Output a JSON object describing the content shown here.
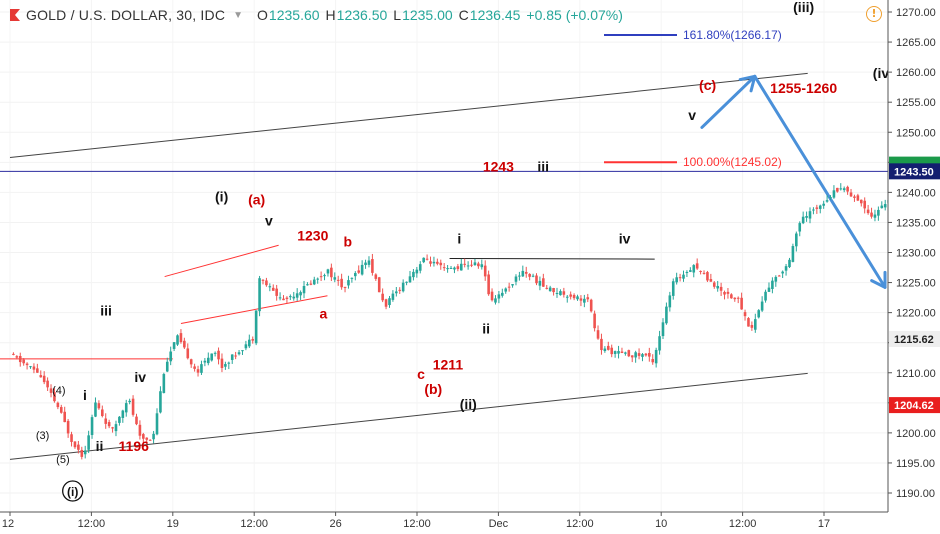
{
  "header": {
    "symbol": "GOLD / U.S. DOLLAR, 30, IDC",
    "open_label": "O",
    "open": "1235.60",
    "high_label": "H",
    "high": "1236.50",
    "low_label": "L",
    "low": "1235.00",
    "close_label": "C",
    "close": "1236.45",
    "change": "+0.85 (+0.07%)",
    "alert_icon": "exclamation-icon"
  },
  "colors": {
    "up": "#26a69a",
    "down": "#ef5350",
    "red_label": "#cc0000",
    "arrow": "#4a90d9",
    "hline": "#2b2b9f",
    "fib161": "#2f3fbf",
    "fib100": "#ff3333",
    "price_red": "#e91e1e",
    "price_green": "#1b9a4a",
    "price_navy": "#131e70"
  },
  "chart_data": {
    "type": "candlestick",
    "title": "GOLD / U.S. DOLLAR, 30, IDC",
    "ylim": [
      1187,
      1272
    ],
    "y_ticks": [
      "1190.00",
      "1195.00",
      "1200.00",
      "1205.00",
      "1210.00",
      "1215.00",
      "1220.00",
      "1225.00",
      "1230.00",
      "1235.00",
      "1240.00",
      "1245.00",
      "1250.00",
      "1255.00",
      "1260.00",
      "1265.00",
      "1270.00"
    ],
    "x_ticks": [
      "12",
      "12:00",
      "19",
      "12:00",
      "26",
      "12:00",
      "Dec",
      "12:00",
      "10",
      "12:00",
      "17"
    ],
    "price_path": [
      [
        0,
        1213
      ],
      [
        0.35,
        1210
      ],
      [
        0.6,
        1204
      ],
      [
        0.75,
        1199
      ],
      [
        0.9,
        1196
      ],
      [
        1.05,
        1205
      ],
      [
        1.25,
        1200
      ],
      [
        1.45,
        1206
      ],
      [
        1.6,
        1199
      ],
      [
        1.75,
        1199
      ],
      [
        1.9,
        1211
      ],
      [
        2.05,
        1216
      ],
      [
        2.3,
        1210
      ],
      [
        2.5,
        1214
      ],
      [
        2.6,
        1211
      ],
      [
        3.0,
        1216
      ],
      [
        3.05,
        1226
      ],
      [
        3.35,
        1222
      ],
      [
        3.6,
        1224
      ],
      [
        3.9,
        1227
      ],
      [
        4.1,
        1224
      ],
      [
        4.4,
        1229
      ],
      [
        4.6,
        1221
      ],
      [
        4.9,
        1226
      ],
      [
        5.1,
        1229
      ],
      [
        5.35,
        1227
      ],
      [
        5.6,
        1228
      ],
      [
        5.8,
        1228
      ],
      [
        5.9,
        1222
      ],
      [
        6.1,
        1224
      ],
      [
        6.3,
        1227
      ],
      [
        6.6,
        1224
      ],
      [
        7.1,
        1222
      ],
      [
        7.25,
        1214
      ],
      [
        7.55,
        1213
      ],
      [
        7.8,
        1213
      ],
      [
        7.9,
        1212
      ],
      [
        8.05,
        1220
      ],
      [
        8.15,
        1225
      ],
      [
        8.4,
        1228
      ],
      [
        8.7,
        1224
      ],
      [
        8.95,
        1222
      ],
      [
        9.1,
        1217
      ],
      [
        9.3,
        1224
      ],
      [
        9.55,
        1228
      ],
      [
        9.7,
        1235
      ],
      [
        9.95,
        1238
      ],
      [
        10.2,
        1241
      ],
      [
        10.4,
        1239
      ],
      [
        10.6,
        1236
      ],
      [
        10.8,
        1239
      ],
      [
        11.05,
        1234
      ],
      [
        11.35,
        1240
      ],
      [
        11.5,
        1235
      ]
    ],
    "series": [
      {
        "name": "Projected path",
        "points": [
          [
            11.5,
            1235
          ],
          [
            11.65,
            1233
          ],
          [
            12.2,
            1249
          ]
        ]
      }
    ],
    "horizontal_lines": [
      {
        "label": "",
        "y": 1243.5
      },
      {
        "label": "",
        "y": 1212.3
      }
    ],
    "fib_levels": [
      {
        "label": "161.80%(1266.17)",
        "y": 1266.17
      },
      {
        "label": "100.00%(1245.02)",
        "y": 1245.02
      }
    ],
    "price_labels": [
      {
        "text": "1243.50",
        "y": 1243.5
      },
      {
        "text": "1215.62",
        "y": 1215.62
      },
      {
        "text": "1204.62",
        "y": 1204.62
      }
    ],
    "channel": {
      "upper": [
        [
          0,
          1245.8
        ],
        [
          9.8,
          1259.8
        ]
      ],
      "lower": [
        [
          0,
          1195.6
        ],
        [
          9.8,
          1209.9
        ]
      ]
    },
    "wedge": {
      "upper": [
        [
          1.9,
          1226.0
        ],
        [
          3.3,
          1231.2
        ]
      ],
      "lower": [
        [
          2.1,
          1218.2
        ],
        [
          3.9,
          1222.8
        ]
      ]
    },
    "wave_labels": [
      {
        "text": "(iii)",
        "x": 9.75,
        "y": 1270,
        "style": "black"
      },
      {
        "text": "(iv",
        "x": 10.7,
        "y": 1259,
        "style": "black"
      },
      {
        "text": "(c)",
        "x": 8.57,
        "y": 1257,
        "style": "red"
      },
      {
        "text": "1255-1260",
        "x": 9.75,
        "y": 1256.5,
        "style": "red"
      },
      {
        "text": "v",
        "x": 8.38,
        "y": 1252,
        "style": "black"
      },
      {
        "text": "1243",
        "x": 6.0,
        "y": 1243.5,
        "style": "red"
      },
      {
        "text": "iii",
        "x": 6.55,
        "y": 1243.5,
        "style": "black"
      },
      {
        "text": "(i)",
        "x": 2.6,
        "y": 1238.5,
        "style": "black"
      },
      {
        "text": "(a)",
        "x": 3.03,
        "y": 1238,
        "style": "red"
      },
      {
        "text": "v",
        "x": 3.18,
        "y": 1234.5,
        "style": "black"
      },
      {
        "text": "1230",
        "x": 3.72,
        "y": 1232,
        "style": "red"
      },
      {
        "text": "b",
        "x": 4.15,
        "y": 1231,
        "style": "red"
      },
      {
        "text": "i",
        "x": 5.52,
        "y": 1231.5,
        "style": "black"
      },
      {
        "text": "iv",
        "x": 7.55,
        "y": 1231.5,
        "style": "black"
      },
      {
        "text": "a",
        "x": 3.85,
        "y": 1219,
        "style": "red"
      },
      {
        "text": "iii",
        "x": 1.18,
        "y": 1219.5,
        "style": "black"
      },
      {
        "text": "ii",
        "x": 5.85,
        "y": 1216.5,
        "style": "black"
      },
      {
        "text": "1211",
        "x": 5.38,
        "y": 1210.5,
        "style": "red"
      },
      {
        "text": "c",
        "x": 5.05,
        "y": 1209,
        "style": "red"
      },
      {
        "text": "iv",
        "x": 1.6,
        "y": 1208.5,
        "style": "black"
      },
      {
        "text": "(b)",
        "x": 5.2,
        "y": 1206.5,
        "style": "red"
      },
      {
        "text": "(4)",
        "x": 0.6,
        "y": 1206.5,
        "style": "small"
      },
      {
        "text": "i",
        "x": 0.92,
        "y": 1205.5,
        "style": "black"
      },
      {
        "text": "(ii)",
        "x": 5.63,
        "y": 1204,
        "style": "black"
      },
      {
        "text": "(3)",
        "x": 0.4,
        "y": 1199,
        "style": "small"
      },
      {
        "text": "ii",
        "x": 1.1,
        "y": 1197,
        "style": "black"
      },
      {
        "text": "1196",
        "x": 1.52,
        "y": 1197,
        "style": "red"
      },
      {
        "text": "(5)",
        "x": 0.65,
        "y": 1195,
        "style": "small"
      },
      {
        "text": "(i)",
        "x": 0.77,
        "y": 1189.5,
        "style": "circled"
      }
    ],
    "arrows": [
      {
        "from": [
          8.5,
          1250.8
        ],
        "to": [
          9.15,
          1259.3
        ]
      },
      {
        "from": [
          9.15,
          1259.3
        ],
        "to": [
          10.75,
          1224.2
        ]
      }
    ]
  }
}
